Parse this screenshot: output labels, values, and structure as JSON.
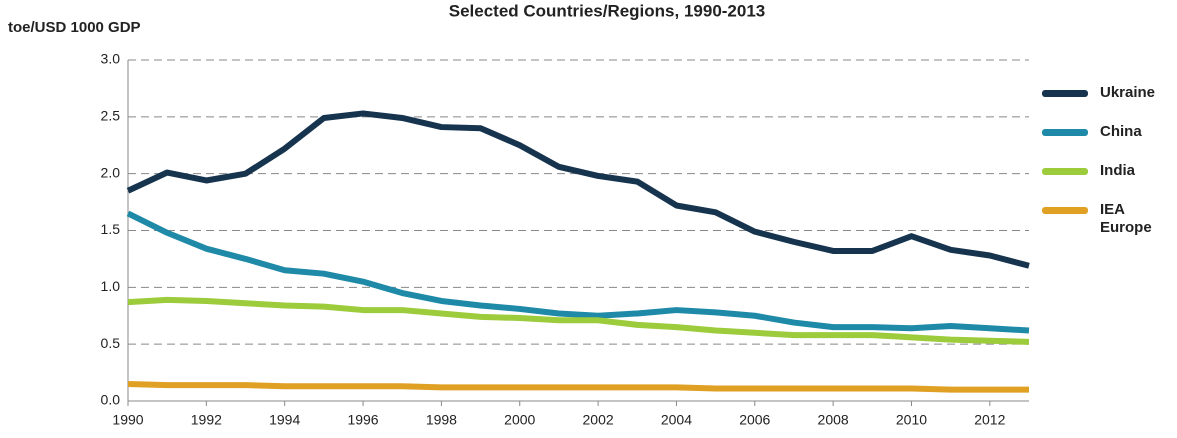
{
  "chart_data": {
    "type": "line",
    "title": "Selected Countries/Regions, 1990-2013",
    "y_label": "toe/USD 1000 GDP",
    "x": [
      1990,
      1991,
      1992,
      1993,
      1994,
      1995,
      1996,
      1997,
      1998,
      1999,
      2000,
      2001,
      2002,
      2003,
      2004,
      2005,
      2006,
      2007,
      2008,
      2009,
      2010,
      2011,
      2012,
      2013
    ],
    "xlim": [
      1990,
      2013
    ],
    "xticks": [
      1990,
      1992,
      1994,
      1996,
      1998,
      2000,
      2002,
      2004,
      2006,
      2008,
      2010,
      2012
    ],
    "ylim": [
      0,
      3
    ],
    "yticks": [
      {
        "value": 0,
        "label": "0.0"
      },
      0.5,
      {
        "value": 1,
        "label": "1.0"
      },
      1.5,
      {
        "value": 2,
        "label": "2.0"
      },
      2.5,
      {
        "value": 3,
        "label": "3.0"
      }
    ],
    "grid": true,
    "legend": "right",
    "series": [
      {
        "name": "Ukraine",
        "color": "#17344f",
        "values": [
          1.85,
          2.01,
          1.94,
          2.0,
          2.22,
          2.49,
          2.53,
          2.49,
          2.41,
          2.4,
          2.25,
          2.06,
          1.98,
          1.93,
          1.72,
          1.66,
          1.49,
          1.4,
          1.32,
          1.32,
          1.45,
          1.33,
          1.28,
          1.19
        ]
      },
      {
        "name": "China",
        "color": "#1e8aa7",
        "values": [
          1.65,
          1.48,
          1.34,
          1.25,
          1.15,
          1.12,
          1.05,
          0.95,
          0.88,
          0.84,
          0.81,
          0.77,
          0.75,
          0.77,
          0.8,
          0.78,
          0.75,
          0.69,
          0.65,
          0.65,
          0.64,
          0.66,
          0.64,
          0.62
        ]
      },
      {
        "name": "India",
        "color": "#9ccb3b",
        "values": [
          0.87,
          0.89,
          0.88,
          0.86,
          0.84,
          0.83,
          0.8,
          0.8,
          0.77,
          0.74,
          0.73,
          0.71,
          0.71,
          0.67,
          0.65,
          0.62,
          0.6,
          0.58,
          0.58,
          0.58,
          0.56,
          0.54,
          0.53,
          0.52
        ]
      },
      {
        "name": "IEA Europe",
        "color": "#e0a024",
        "values": [
          0.15,
          0.14,
          0.14,
          0.14,
          0.13,
          0.13,
          0.13,
          0.13,
          0.12,
          0.12,
          0.12,
          0.12,
          0.12,
          0.12,
          0.12,
          0.11,
          0.11,
          0.11,
          0.11,
          0.11,
          0.11,
          0.1,
          0.1,
          0.1
        ]
      }
    ]
  }
}
